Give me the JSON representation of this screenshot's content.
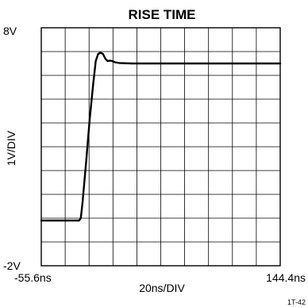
{
  "chart_data": {
    "type": "line",
    "title": "RISE TIME",
    "xlabel": "20ns/DIV",
    "ylabel": "1V/DIV",
    "x_start_label": "-55.6ns",
    "x_end_label": "144.4ns",
    "y_top_label": "8V",
    "y_bottom_label": "-2V",
    "xlim": [
      -55.6,
      144.4
    ],
    "ylim": [
      -2,
      8
    ],
    "x_divisions": 10,
    "y_divisions": 10,
    "grid": true,
    "series": [
      {
        "x": [
          -55.6,
          -38,
          -24,
          -22.5,
          -21,
          -18,
          -15,
          -12,
          -10,
          -8,
          -6,
          -4,
          -2,
          0,
          2,
          4,
          6,
          10,
          20,
          40,
          80,
          144.4
        ],
        "y": [
          -0.1,
          -0.1,
          -0.1,
          0,
          0.7,
          2.4,
          4.2,
          5.7,
          6.6,
          6.9,
          6.95,
          6.9,
          6.7,
          6.6,
          6.62,
          6.6,
          6.55,
          6.52,
          6.5,
          6.5,
          6.5,
          6.5
        ]
      }
    ],
    "figure_id": "1T-42"
  }
}
